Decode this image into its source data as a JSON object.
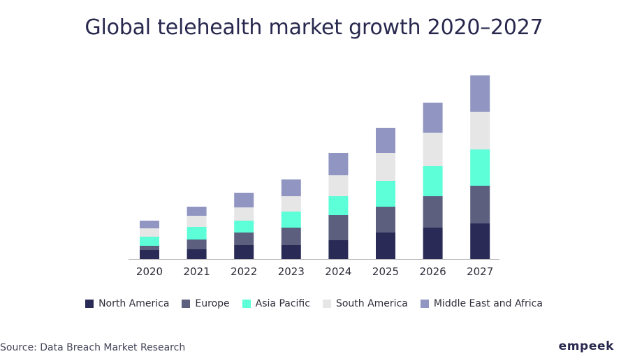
{
  "title": "Global telehealth market growth 2020–2027",
  "source": "Source: Data Breach Market Research",
  "brand": "empeek",
  "colors": {
    "background": "#ffffff",
    "title": "#28284f",
    "axis": "#bbbbbb"
  },
  "chart_data": {
    "type": "bar",
    "stacked": true,
    "title": "Global telehealth market growth 2020–2027",
    "xlabel": "",
    "ylabel": "",
    "grid": false,
    "legend_position": "bottom",
    "categories": [
      "2020",
      "2021",
      "2022",
      "2023",
      "2024",
      "2025",
      "2026",
      "2027"
    ],
    "ylim": [
      0,
      270
    ],
    "series": [
      {
        "name": "North America",
        "color": "#292b56",
        "values": [
          13,
          14,
          20,
          20,
          27,
          38,
          45,
          51
        ]
      },
      {
        "name": "Europe",
        "color": "#5c5f7e",
        "values": [
          6,
          14,
          18,
          25,
          36,
          37,
          45,
          54
        ]
      },
      {
        "name": "Asia Pacific",
        "color": "#5cffd7",
        "values": [
          13,
          18,
          17,
          23,
          27,
          37,
          43,
          52
        ]
      },
      {
        "name": "South America",
        "color": "#e6e6e6",
        "values": [
          12,
          16,
          19,
          22,
          30,
          40,
          48,
          54
        ]
      },
      {
        "name": "Middle East and Africa",
        "color": "#9095c2",
        "values": [
          11,
          13,
          21,
          24,
          32,
          36,
          43,
          52
        ]
      }
    ]
  }
}
